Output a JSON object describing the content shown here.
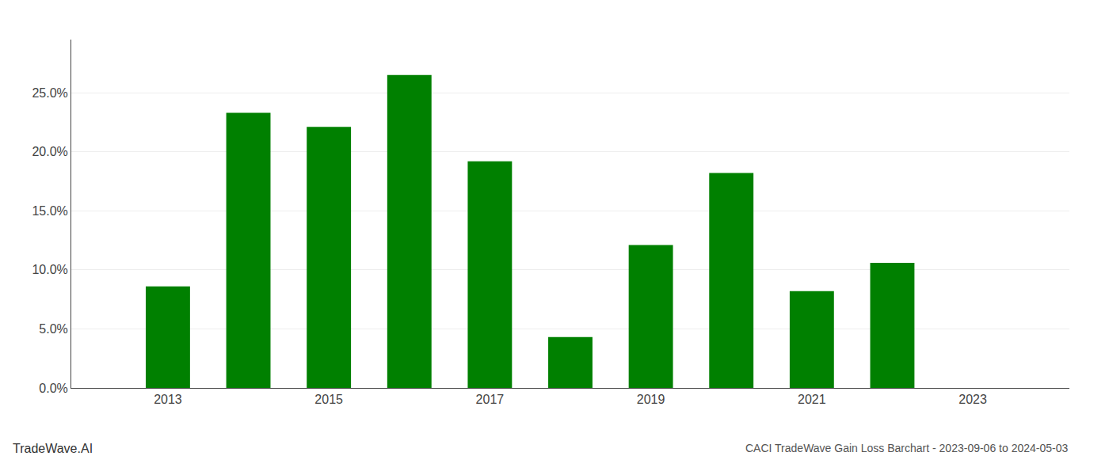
{
  "chart_data": {
    "type": "bar",
    "title": "CACI TradeWave Gain Loss Barchart - 2023-09-06 to 2024-05-03",
    "annotations": [
      "TradeWave.AI"
    ],
    "x": [
      2013,
      2014,
      2015,
      2016,
      2017,
      2018,
      2019,
      2020,
      2021,
      2022,
      2023
    ],
    "values": [
      0.086,
      0.233,
      0.221,
      0.265,
      0.192,
      0.043,
      0.121,
      0.182,
      0.082,
      0.106,
      0.0
    ],
    "color": "#008000",
    "xlim": [
      2011.8,
      2024.2
    ],
    "xticks": [
      2013,
      2015,
      2017,
      2019,
      2021,
      2023
    ],
    "ylim": [
      0,
      0.295
    ],
    "yticks": [
      {
        "value": 0.0,
        "label": "0.0%"
      },
      {
        "value": 0.05,
        "label": "5.0%"
      },
      {
        "value": 0.1,
        "label": "10.0%"
      },
      {
        "value": 0.15,
        "label": "15.0%"
      },
      {
        "value": 0.2,
        "label": "20.0%"
      },
      {
        "value": 0.25,
        "label": "25.0%"
      }
    ],
    "grid": true
  }
}
